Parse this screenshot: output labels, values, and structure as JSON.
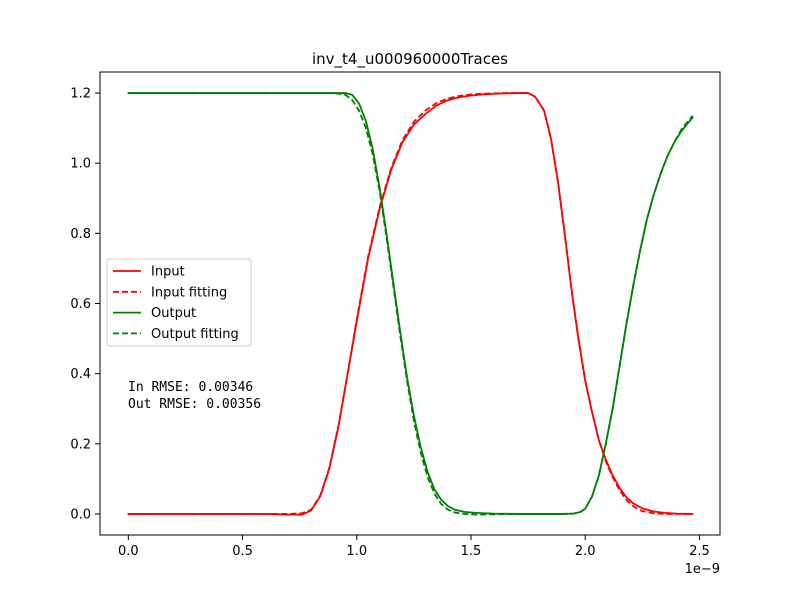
{
  "chart_data": {
    "type": "line",
    "title": "inv_t4_u000960000Traces",
    "xlabel": "",
    "ylabel": "",
    "x_offset_label": "1e−9",
    "xlim": [
      -1.24e-10,
      2.59e-09
    ],
    "ylim": [
      -0.06,
      1.26
    ],
    "x_ticks": [
      {
        "value": 0.0,
        "label": "0.0"
      },
      {
        "value": 5e-10,
        "label": "0.5"
      },
      {
        "value": 1e-09,
        "label": "1.0"
      },
      {
        "value": 1.5e-09,
        "label": "1.5"
      },
      {
        "value": 2e-09,
        "label": "2.0"
      },
      {
        "value": 2.5e-09,
        "label": "2.5"
      }
    ],
    "y_ticks": [
      {
        "value": 0.0,
        "label": "0.0"
      },
      {
        "value": 0.2,
        "label": "0.2"
      },
      {
        "value": 0.4,
        "label": "0.4"
      },
      {
        "value": 0.6,
        "label": "0.6"
      },
      {
        "value": 0.8,
        "label": "0.8"
      },
      {
        "value": 1.0,
        "label": "1.0"
      },
      {
        "value": 1.2,
        "label": "1.2"
      }
    ],
    "grid": false,
    "legend_position": "center-left",
    "series": [
      {
        "name": "Input",
        "color": "#ff0000",
        "linestyle": "solid",
        "x": [
          0,
          3e-10,
          6e-10,
          7e-10,
          7.6e-10,
          8e-10,
          8.4e-10,
          8.8e-10,
          9.2e-10,
          9.6e-10,
          1e-09,
          1.05e-09,
          1.1e-09,
          1.15e-09,
          1.2e-09,
          1.25e-09,
          1.3e-09,
          1.35e-09,
          1.4e-09,
          1.45e-09,
          1.5e-09,
          1.55e-09,
          1.6e-09,
          1.65e-09,
          1.7e-09,
          1.75e-09,
          1.78e-09,
          1.82e-09,
          1.85e-09,
          1.88e-09,
          1.91e-09,
          1.94e-09,
          1.97e-09,
          2e-09,
          2.03e-09,
          2.06e-09,
          2.09e-09,
          2.12e-09,
          2.15e-09,
          2.18e-09,
          2.21e-09,
          2.25e-09,
          2.3e-09,
          2.35e-09,
          2.4e-09,
          2.47e-09
        ],
        "y": [
          0.0,
          0.0,
          0.0,
          -0.002,
          -0.002,
          0.01,
          0.05,
          0.13,
          0.25,
          0.4,
          0.55,
          0.73,
          0.87,
          0.98,
          1.06,
          1.11,
          1.14,
          1.165,
          1.18,
          1.188,
          1.193,
          1.196,
          1.198,
          1.199,
          1.2,
          1.2,
          1.19,
          1.15,
          1.07,
          0.95,
          0.8,
          0.64,
          0.5,
          0.38,
          0.29,
          0.21,
          0.155,
          0.11,
          0.075,
          0.048,
          0.03,
          0.016,
          0.007,
          0.003,
          0.001,
          0.0
        ]
      },
      {
        "name": "Input fitting",
        "color": "#ff0000",
        "linestyle": "dashed",
        "x": [
          0,
          3e-10,
          6e-10,
          7e-10,
          7.6e-10,
          8e-10,
          8.4e-10,
          8.8e-10,
          9.2e-10,
          9.6e-10,
          1e-09,
          1.05e-09,
          1.1e-09,
          1.15e-09,
          1.2e-09,
          1.25e-09,
          1.3e-09,
          1.35e-09,
          1.4e-09,
          1.45e-09,
          1.5e-09,
          1.55e-09,
          1.6e-09,
          1.65e-09,
          1.7e-09,
          1.75e-09,
          1.78e-09,
          1.82e-09,
          1.85e-09,
          1.88e-09,
          1.91e-09,
          1.94e-09,
          1.97e-09,
          2e-09,
          2.03e-09,
          2.06e-09,
          2.09e-09,
          2.12e-09,
          2.15e-09,
          2.18e-09,
          2.21e-09,
          2.25e-09,
          2.3e-09,
          2.35e-09,
          2.4e-09,
          2.47e-09
        ],
        "y": [
          0.0,
          0.0,
          0.0,
          0.0,
          0.002,
          0.012,
          0.052,
          0.132,
          0.252,
          0.4,
          0.555,
          0.735,
          0.875,
          0.985,
          1.066,
          1.118,
          1.15,
          1.172,
          1.185,
          1.192,
          1.196,
          1.198,
          1.199,
          1.2,
          1.2,
          1.2,
          1.19,
          1.15,
          1.07,
          0.95,
          0.8,
          0.64,
          0.5,
          0.38,
          0.29,
          0.21,
          0.15,
          0.105,
          0.068,
          0.04,
          0.022,
          0.008,
          0.002,
          0.0,
          0.0,
          0.0
        ]
      },
      {
        "name": "Output",
        "color": "#008000",
        "linestyle": "solid",
        "x": [
          0,
          5e-10,
          8e-10,
          9e-10,
          9.5e-10,
          9.8e-10,
          1.01e-09,
          1.04e-09,
          1.07e-09,
          1.1e-09,
          1.13e-09,
          1.16e-09,
          1.19e-09,
          1.22e-09,
          1.25e-09,
          1.28e-09,
          1.31e-09,
          1.34e-09,
          1.37e-09,
          1.4e-09,
          1.43e-09,
          1.47e-09,
          1.52e-09,
          1.6e-09,
          1.7e-09,
          1.8e-09,
          1.9e-09,
          1.95e-09,
          1.98e-09,
          2e-09,
          2.03e-09,
          2.06e-09,
          2.09e-09,
          2.12e-09,
          2.15e-09,
          2.18e-09,
          2.21e-09,
          2.24e-09,
          2.27e-09,
          2.3e-09,
          2.33e-09,
          2.36e-09,
          2.39e-09,
          2.42e-09,
          2.45e-09,
          2.47e-09
        ],
        "y": [
          1.2,
          1.2,
          1.2,
          1.2,
          1.2,
          1.195,
          1.17,
          1.12,
          1.04,
          0.93,
          0.8,
          0.66,
          0.52,
          0.39,
          0.28,
          0.19,
          0.12,
          0.07,
          0.04,
          0.022,
          0.012,
          0.006,
          0.003,
          0.001,
          0.0,
          0.0,
          0.0,
          0.001,
          0.006,
          0.015,
          0.05,
          0.11,
          0.2,
          0.3,
          0.42,
          0.54,
          0.65,
          0.75,
          0.84,
          0.91,
          0.97,
          1.02,
          1.06,
          1.09,
          1.115,
          1.13
        ]
      },
      {
        "name": "Output fitting",
        "color": "#008000",
        "linestyle": "dashed",
        "x": [
          0,
          5e-10,
          8e-10,
          9e-10,
          9.5e-10,
          9.8e-10,
          1.01e-09,
          1.04e-09,
          1.07e-09,
          1.1e-09,
          1.13e-09,
          1.16e-09,
          1.19e-09,
          1.22e-09,
          1.25e-09,
          1.28e-09,
          1.31e-09,
          1.34e-09,
          1.37e-09,
          1.4e-09,
          1.43e-09,
          1.47e-09,
          1.52e-09,
          1.6e-09,
          1.7e-09,
          1.8e-09,
          1.9e-09,
          1.95e-09,
          1.98e-09,
          2e-09,
          2.03e-09,
          2.06e-09,
          2.09e-09,
          2.12e-09,
          2.15e-09,
          2.18e-09,
          2.21e-09,
          2.24e-09,
          2.27e-09,
          2.3e-09,
          2.33e-09,
          2.36e-09,
          2.39e-09,
          2.42e-09,
          2.45e-09,
          2.47e-09
        ],
        "y": [
          1.2,
          1.2,
          1.2,
          1.2,
          1.195,
          1.18,
          1.15,
          1.1,
          1.025,
          0.92,
          0.79,
          0.65,
          0.51,
          0.38,
          0.265,
          0.175,
          0.105,
          0.058,
          0.028,
          0.012,
          0.004,
          0.0,
          -0.002,
          -0.001,
          0.0,
          0.0,
          0.0,
          0.001,
          0.006,
          0.015,
          0.05,
          0.11,
          0.2,
          0.3,
          0.42,
          0.54,
          0.65,
          0.75,
          0.84,
          0.91,
          0.97,
          1.02,
          1.06,
          1.095,
          1.12,
          1.135
        ]
      }
    ],
    "annotations": [
      {
        "text": "In  RMSE: 0.00346"
      },
      {
        "text": "Out RMSE: 0.00356"
      }
    ]
  }
}
